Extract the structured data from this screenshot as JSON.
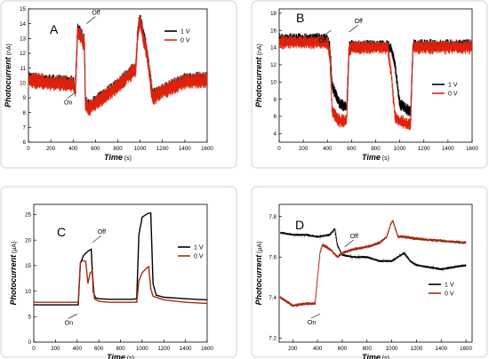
{
  "chart_data": [
    {
      "type": "line",
      "panel_letter": "A",
      "xlabel": "Time",
      "xunit": "(s)",
      "ylabel": "Photocurrent",
      "yunit": "(nA)",
      "xlim": [
        0,
        1600
      ],
      "ylim": [
        6,
        15
      ],
      "xticks": [
        0,
        200,
        400,
        600,
        800,
        1000,
        1200,
        1400,
        1600
      ],
      "yticks": [
        6,
        7,
        8,
        9,
        10,
        11,
        12,
        13,
        14,
        15
      ],
      "legend": {
        "position": "top-right",
        "entries": [
          "1 V",
          "0 V"
        ]
      },
      "annotations": [
        {
          "text": "On",
          "x": 430,
          "y": 9.4
        },
        {
          "text": "Off",
          "x": 520,
          "y": 14.0
        }
      ],
      "series": [
        {
          "name": "1 V",
          "color": "#000000",
          "noise": 0.5,
          "x": [
            0,
            200,
            400,
            420,
            440,
            470,
            500,
            510,
            530,
            600,
            700,
            800,
            900,
            960,
            980,
            1000,
            1030,
            1060,
            1090,
            1110,
            1200,
            1400,
            1600
          ],
          "y": [
            10.3,
            10.1,
            10.0,
            9.6,
            13.6,
            13.3,
            12.8,
            8.8,
            8.4,
            8.7,
            9.3,
            9.9,
            10.6,
            11.0,
            13.6,
            14.4,
            13.2,
            12.2,
            10.4,
            9.2,
            9.5,
            10.2,
            10.3
          ]
        },
        {
          "name": "0 V",
          "color": "#e0200a",
          "noise": 0.55,
          "x": [
            0,
            200,
            400,
            420,
            440,
            470,
            500,
            510,
            530,
            600,
            700,
            800,
            900,
            960,
            980,
            1000,
            1030,
            1060,
            1090,
            1110,
            1200,
            1400,
            1600
          ],
          "y": [
            10.2,
            10.0,
            9.9,
            9.5,
            13.4,
            13.1,
            12.6,
            8.6,
            8.2,
            8.6,
            9.2,
            9.8,
            10.5,
            10.9,
            13.4,
            14.2,
            13.0,
            12.0,
            10.2,
            9.0,
            9.4,
            10.1,
            10.2
          ]
        }
      ]
    },
    {
      "type": "line",
      "panel_letter": "B",
      "xlabel": "Time",
      "xunit": "(s)",
      "ylabel": "Photocurrent",
      "yunit": "(nA)",
      "xlim": [
        0,
        1600
      ],
      "ylim": [
        3,
        18.5
      ],
      "xticks": [
        0,
        200,
        400,
        600,
        800,
        1000,
        1200,
        1400,
        1600
      ],
      "yticks": [
        4,
        6,
        8,
        10,
        12,
        14,
        16,
        18
      ],
      "legend": {
        "position": "right",
        "entries": [
          "1 V",
          "0 V"
        ]
      },
      "annotations": [
        {
          "text": "On",
          "x": 430,
          "y": 16.0
        },
        {
          "text": "Off",
          "x": 580,
          "y": 15.8
        }
      ],
      "series": [
        {
          "name": "1 V",
          "color": "#000000",
          "noise": 0.7,
          "x": [
            0,
            200,
            400,
            420,
            440,
            500,
            560,
            580,
            600,
            800,
            900,
            930,
            960,
            1000,
            1090,
            1110,
            1200,
            1400,
            1600
          ],
          "y": [
            15.0,
            15.0,
            15.0,
            14.0,
            9.5,
            7.5,
            7.0,
            14.0,
            14.2,
            14.2,
            14.2,
            13.8,
            12.0,
            7.5,
            6.5,
            14.3,
            14.3,
            14.3,
            14.3
          ]
        },
        {
          "name": "0 V",
          "color": "#e0200a",
          "noise": 0.8,
          "x": [
            0,
            200,
            400,
            420,
            440,
            500,
            560,
            580,
            600,
            800,
            900,
            930,
            960,
            1000,
            1090,
            1110,
            1200,
            1400,
            1600
          ],
          "y": [
            14.6,
            14.6,
            14.6,
            13.0,
            6.5,
            5.5,
            5.5,
            13.8,
            14.0,
            14.0,
            14.0,
            11.0,
            6.0,
            5.5,
            5.0,
            14.0,
            14.0,
            14.0,
            14.0
          ]
        }
      ]
    },
    {
      "type": "line",
      "panel_letter": "C",
      "xlabel": "Time",
      "xunit": "(s)",
      "ylabel": "Photocurrent",
      "yunit": "(μA)",
      "xlim": [
        0,
        1600
      ],
      "ylim": [
        0,
        27
      ],
      "xticks": [
        0,
        200,
        400,
        600,
        800,
        1000,
        1200,
        1400,
        1600
      ],
      "yticks": [
        0,
        5,
        10,
        15,
        20,
        25
      ],
      "legend": {
        "position": "right",
        "entries": [
          "1 V",
          "0 V"
        ]
      },
      "annotations": [
        {
          "text": "On",
          "x": 400,
          "y": 5.5
        },
        {
          "text": "Off",
          "x": 540,
          "y": 19.5
        }
      ],
      "series": [
        {
          "name": "1 V",
          "color": "#000000",
          "noise": 0,
          "x": [
            0,
            200,
            410,
            430,
            460,
            500,
            530,
            550,
            570,
            600,
            700,
            900,
            950,
            970,
            1000,
            1050,
            1080,
            1100,
            1130,
            1200,
            1400,
            1600
          ],
          "y": [
            7.3,
            7.3,
            7.3,
            15.5,
            17.0,
            17.8,
            18.2,
            9.8,
            8.7,
            8.5,
            8.4,
            8.4,
            8.5,
            21.0,
            24.5,
            25.2,
            25.3,
            11.5,
            9.2,
            8.8,
            8.5,
            8.3
          ]
        },
        {
          "name": "0 V",
          "color": "#a02b0e",
          "noise": 0,
          "x": [
            0,
            200,
            410,
            430,
            450,
            480,
            500,
            520,
            540,
            560,
            600,
            700,
            900,
            950,
            970,
            1000,
            1040,
            1060,
            1080,
            1100,
            1200,
            1400,
            1600
          ],
          "y": [
            7.8,
            7.8,
            7.8,
            15.5,
            16.0,
            15.8,
            11.5,
            13.5,
            14.0,
            8.5,
            8.0,
            7.8,
            7.8,
            7.8,
            12.0,
            13.6,
            14.5,
            14.8,
            10.5,
            9.0,
            8.3,
            7.8,
            7.6
          ]
        }
      ]
    },
    {
      "type": "line",
      "panel_letter": "D",
      "xlabel": "Time",
      "xunit": "(s)",
      "ylabel": "Photocurrent",
      "yunit": "(μA)",
      "xlim": [
        90,
        1650
      ],
      "ylim": [
        7.18,
        7.86
      ],
      "xticks": [
        200,
        400,
        600,
        800,
        1000,
        1200,
        1400,
        1600
      ],
      "yticks": [
        7.2,
        7.4,
        7.6,
        7.8
      ],
      "legend": {
        "position": "bottom-right",
        "entries": [
          "1 V",
          "0 V"
        ]
      },
      "annotations": [
        {
          "text": "On",
          "x": 420,
          "y": 7.32
        },
        {
          "text": "Off",
          "x": 620,
          "y": 7.65
        }
      ],
      "series": [
        {
          "name": "1 V",
          "color": "#000000",
          "noise": 0.006,
          "x": [
            100,
            200,
            300,
            400,
            500,
            540,
            560,
            600,
            700,
            800,
            900,
            1000,
            1050,
            1100,
            1150,
            1200,
            1300,
            1400,
            1500,
            1600
          ],
          "y": [
            7.72,
            7.71,
            7.71,
            7.7,
            7.71,
            7.74,
            7.66,
            7.61,
            7.6,
            7.6,
            7.58,
            7.58,
            7.6,
            7.62,
            7.58,
            7.56,
            7.55,
            7.54,
            7.55,
            7.56
          ]
        },
        {
          "name": "0 V",
          "color": "#a02b0e",
          "noise": 0.008,
          "x": [
            100,
            200,
            300,
            380,
            420,
            440,
            500,
            560,
            600,
            700,
            800,
            900,
            960,
            990,
            1010,
            1050,
            1100,
            1200,
            1400,
            1600
          ],
          "y": [
            7.4,
            7.36,
            7.37,
            7.37,
            7.62,
            7.66,
            7.64,
            7.6,
            7.62,
            7.64,
            7.65,
            7.67,
            7.7,
            7.76,
            7.78,
            7.7,
            7.7,
            7.69,
            7.68,
            7.67
          ]
        }
      ]
    }
  ]
}
